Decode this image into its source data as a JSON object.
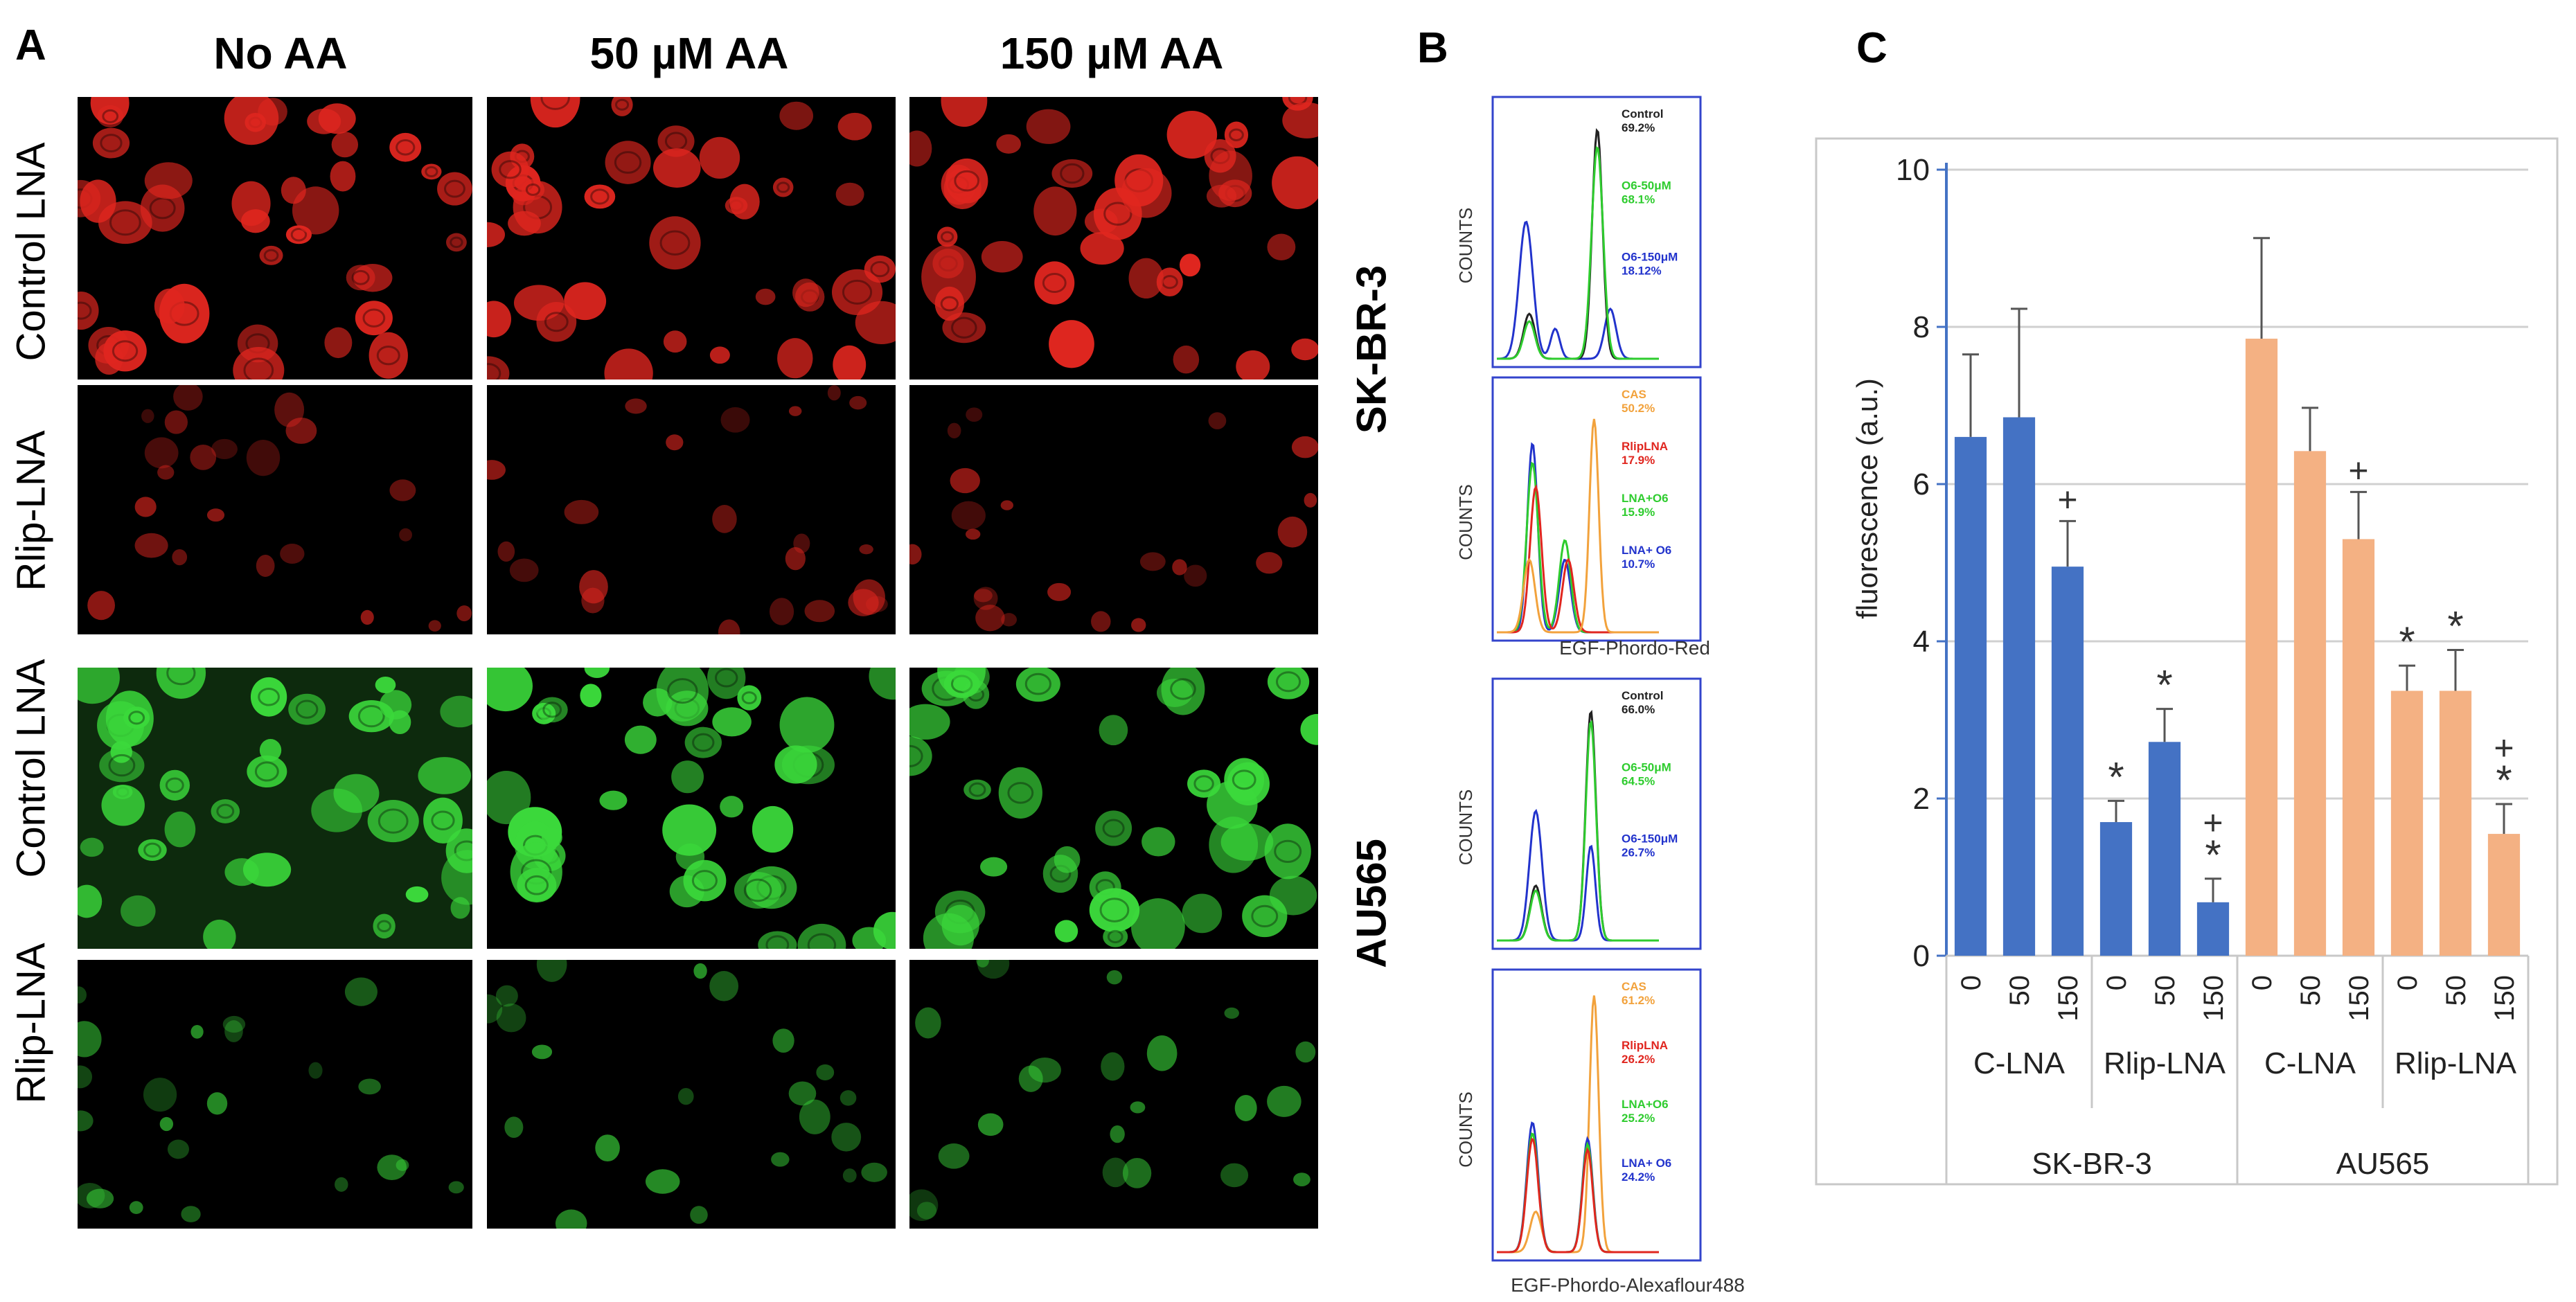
{
  "panel_a": {
    "label": "A",
    "columns": [
      "No AA",
      "50 µM AA",
      "150 µM AA"
    ],
    "rows": [
      "Control LNA",
      "Rlip-LNA",
      "Control LNA",
      "Rlip-LNA"
    ],
    "row_colors": [
      "#e0261f",
      "#e0261f",
      "#3bd93b",
      "#3bd93b"
    ],
    "cell_lines": [
      "SK-BR-3",
      "AU565"
    ]
  },
  "panel_b": {
    "label": "B",
    "y_axis_label": "COUNTS",
    "x_axis_labels": [
      "EGF-Phordo-Red",
      "EGF-Phordo-Alexaflour488"
    ],
    "histograms": [
      {
        "legend": [
          {
            "name": "Control",
            "value": "69.2%",
            "color": "#222222"
          },
          {
            "name": "O6-50μM",
            "value": "68.1%",
            "color": "#2ecc2e"
          },
          {
            "name": "O6-150μM",
            "value": "18.12%",
            "color": "#2233cc"
          }
        ]
      },
      {
        "legend": [
          {
            "name": "CAS",
            "value": "50.2%",
            "color": "#f2a23c"
          },
          {
            "name": "RlipLNA",
            "value": "17.9%",
            "color": "#e0261f"
          },
          {
            "name": "LNA+O6",
            "value": "15.9%",
            "color": "#2ecc2e"
          },
          {
            "name": "LNA+ O6",
            "value": "10.7%",
            "color": "#2233cc"
          }
        ]
      },
      {
        "legend": [
          {
            "name": "Control",
            "value": "66.0%",
            "color": "#222222"
          },
          {
            "name": "O6-50μM",
            "value": "64.5%",
            "color": "#2ecc2e"
          },
          {
            "name": "O6-150μM",
            "value": "26.7%",
            "color": "#2233cc"
          }
        ]
      },
      {
        "legend": [
          {
            "name": "CAS",
            "value": "61.2%",
            "color": "#f2a23c"
          },
          {
            "name": "RlipLNA",
            "value": "26.2%",
            "color": "#e0261f"
          },
          {
            "name": "LNA+O6",
            "value": "25.2%",
            "color": "#2ecc2e"
          },
          {
            "name": "LNA+ O6",
            "value": "24.2%",
            "color": "#2233cc"
          }
        ]
      }
    ]
  },
  "chart_data": {
    "type": "bar",
    "panel_label": "C",
    "ylabel": "fluorescence (a.u.)",
    "ylim": [
      0,
      10
    ],
    "yticks": [
      0,
      2,
      4,
      6,
      8,
      10
    ],
    "grid": true,
    "categories": [
      "0",
      "50",
      "150",
      "0",
      "50",
      "150",
      "0",
      "50",
      "150",
      "0",
      "50",
      "150"
    ],
    "values": [
      6.6,
      6.85,
      4.95,
      1.7,
      2.72,
      0.68,
      7.85,
      6.42,
      5.3,
      3.37,
      3.37,
      1.55
    ],
    "errors": [
      1.05,
      1.38,
      0.58,
      0.27,
      0.42,
      0.3,
      1.28,
      0.55,
      0.6,
      0.32,
      0.52,
      0.38
    ],
    "annotations": [
      "",
      "",
      "+",
      "*",
      "*",
      "+\n*",
      "",
      "",
      "+",
      "*",
      "*",
      "+\n*"
    ],
    "bar_colors": [
      "#4472c4",
      "#4472c4",
      "#4472c4",
      "#4472c4",
      "#4472c4",
      "#4472c4",
      "#f4b183",
      "#f4b183",
      "#f4b183",
      "#f4b183",
      "#f4b183",
      "#f4b183"
    ],
    "treatment_groups": [
      "C-LNA",
      "Rlip-LNA",
      "C-LNA",
      "Rlip-LNA"
    ],
    "cell_line_groups": [
      "SK-BR-3",
      "AU565"
    ]
  }
}
